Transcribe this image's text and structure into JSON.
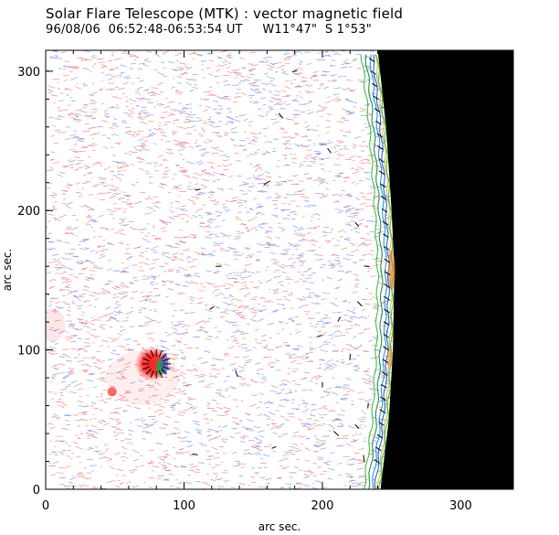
{
  "header": {
    "title": "Solar Flare Telescope (MTK) : vector magnetic field",
    "subtitle": "96/08/06  06:52:48-06:53:54 UT     W11°47\"  S 1°53\""
  },
  "chart_data": {
    "type": "heatmap",
    "title": "Solar Flare Telescope (MTK) : vector magnetic field",
    "subtitle": "96/08/06  06:52:48-06:53:54 UT     W11°47\"  S 1°53\"",
    "xlabel": "arc sec.",
    "ylabel": "arc sec.",
    "xlim": [
      0,
      338
    ],
    "ylim": [
      0,
      315
    ],
    "x_ticks": [
      0,
      100,
      200,
      300
    ],
    "y_ticks": [
      0,
      100,
      200,
      300
    ],
    "grid": false,
    "colors": {
      "positive_field": "#f03030",
      "negative_field": "#3050e0",
      "off_disk": "#000000",
      "limb_contours": [
        "#40c040",
        "#2a8a4a",
        "#20a0d0",
        "#3060e0",
        "#d8c040"
      ],
      "vectors": "#000000"
    },
    "limb": {
      "x_at_y": [
        [
          0,
          242
        ],
        [
          50,
          248
        ],
        [
          100,
          251
        ],
        [
          157,
          252
        ],
        [
          200,
          250
        ],
        [
          260,
          246
        ],
        [
          315,
          240
        ]
      ]
    },
    "features": {
      "sunspot": {
        "x": 80,
        "y": 90,
        "polarity": "positive",
        "radius": 8
      },
      "small_spot": {
        "x": 48,
        "y": 70,
        "polarity": "positive",
        "radius": 2.5
      }
    }
  }
}
